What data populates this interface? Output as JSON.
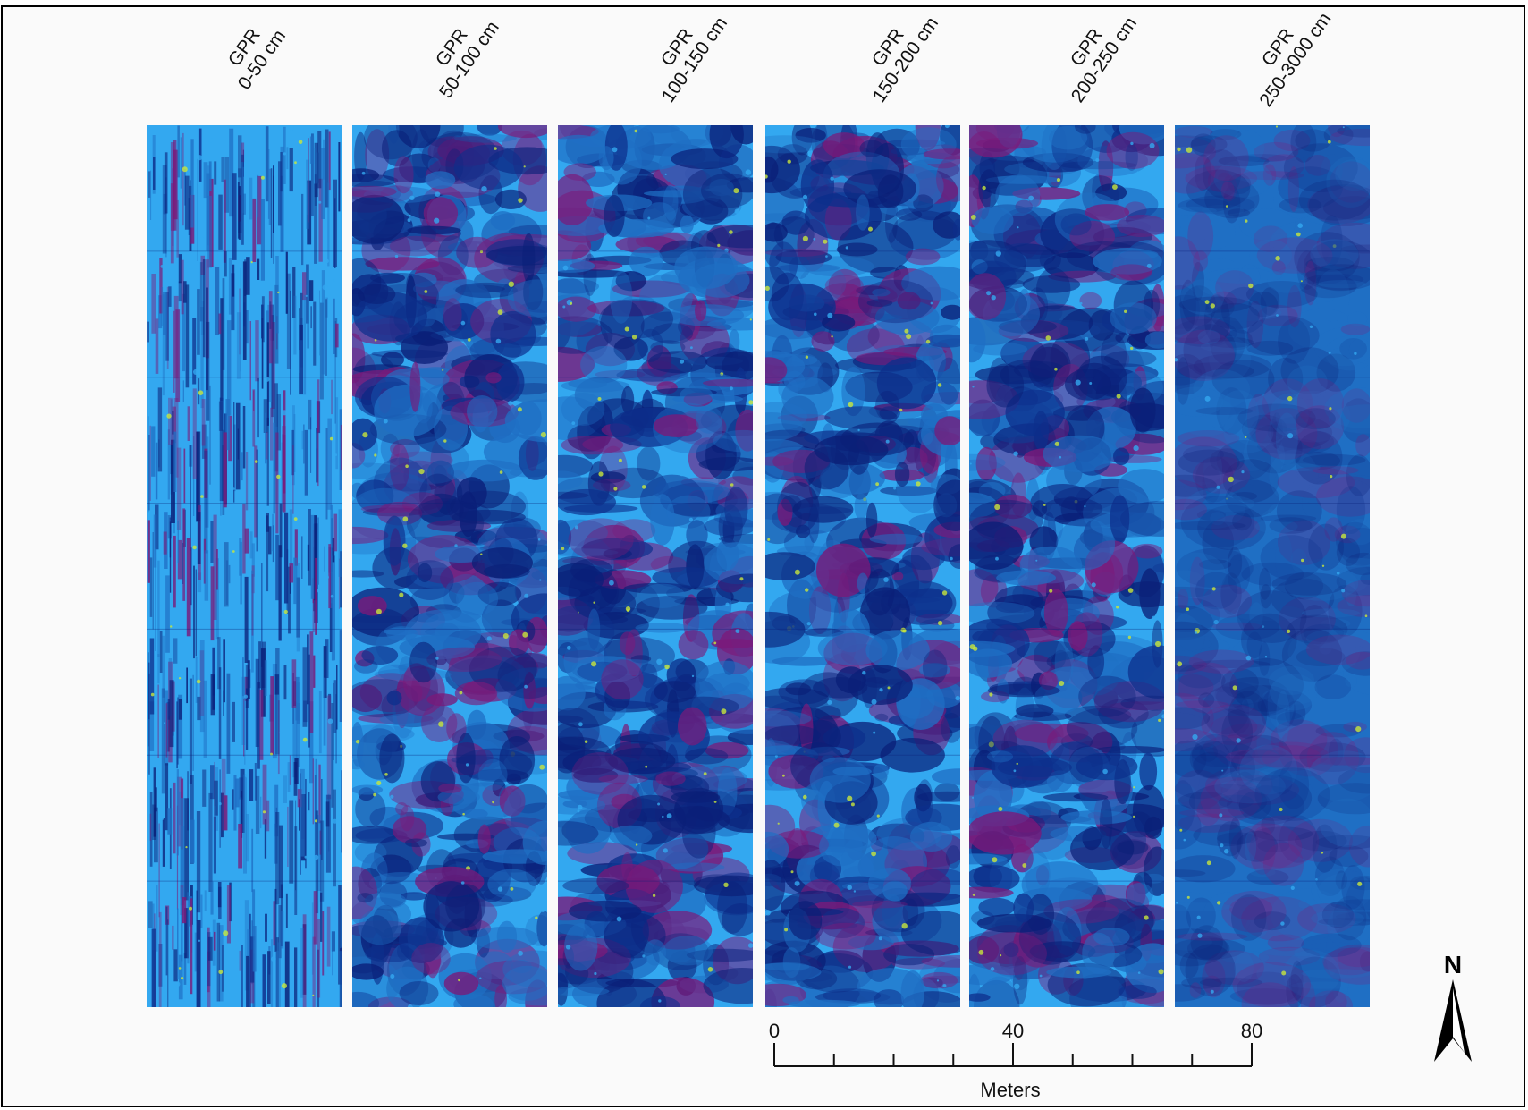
{
  "figure": {
    "columns": [
      {
        "line1": "GPR",
        "line2": "0-50 cm",
        "style": "streaky"
      },
      {
        "line1": "GPR",
        "line2": "50-100 cm",
        "style": "mixed"
      },
      {
        "line1": "GPR",
        "line2": "100-150 cm",
        "style": "mottled"
      },
      {
        "line1": "GPR",
        "line2": "150-200 cm",
        "style": "mottled"
      },
      {
        "line1": "GPR",
        "line2": "200-250 cm",
        "style": "mottled"
      },
      {
        "line1": "GPR",
        "line2": "250-3000 cm",
        "style": "uniform"
      }
    ],
    "rows_per_column": 7,
    "palette": {
      "light_blue": "#33a8f0",
      "mid_blue": "#1f6fc4",
      "dark_blue": "#0d2f8c",
      "navy": "#0a1f78",
      "magenta": "#7a1a7a",
      "yellow_green": "#c8e63c",
      "frame": "#000000",
      "background": "#fafafa"
    }
  },
  "scale_bar": {
    "labels": [
      "0",
      "40",
      "80"
    ],
    "unit": "Meters",
    "max": 80,
    "minor_divisions": 8
  },
  "north_arrow": {
    "letter": "N",
    "icon": "north-arrow-icon"
  }
}
